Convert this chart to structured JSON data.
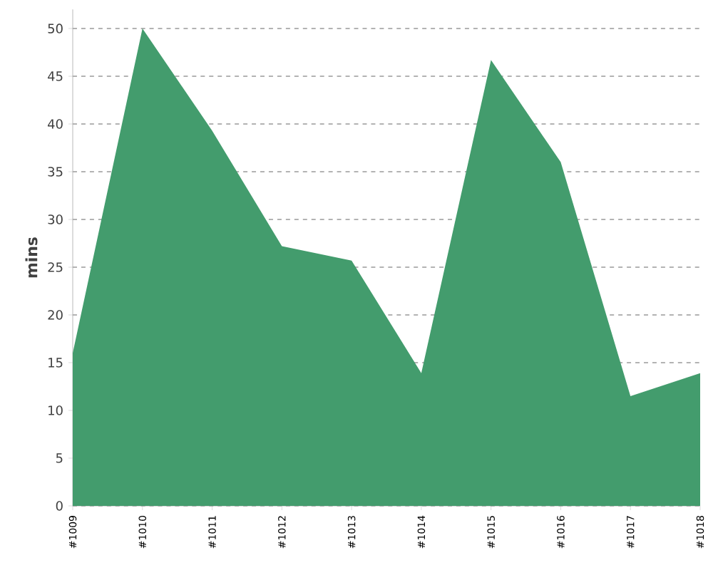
{
  "chart_data": {
    "type": "area",
    "ylabel": "mins",
    "categories": [
      "#1009",
      "#1010",
      "#1011",
      "#1012",
      "#1013",
      "#1014",
      "#1015",
      "#1016",
      "#1017",
      "#1018"
    ],
    "values": [
      16,
      50,
      39.3,
      27.2,
      25.7,
      13.9,
      46.7,
      36,
      11.5,
      13.9
    ],
    "color": "#439c6d",
    "ylim": [
      0,
      52
    ],
    "yticks": [
      0,
      5,
      10,
      15,
      20,
      25,
      30,
      35,
      40,
      45,
      50
    ],
    "grid": "y"
  }
}
